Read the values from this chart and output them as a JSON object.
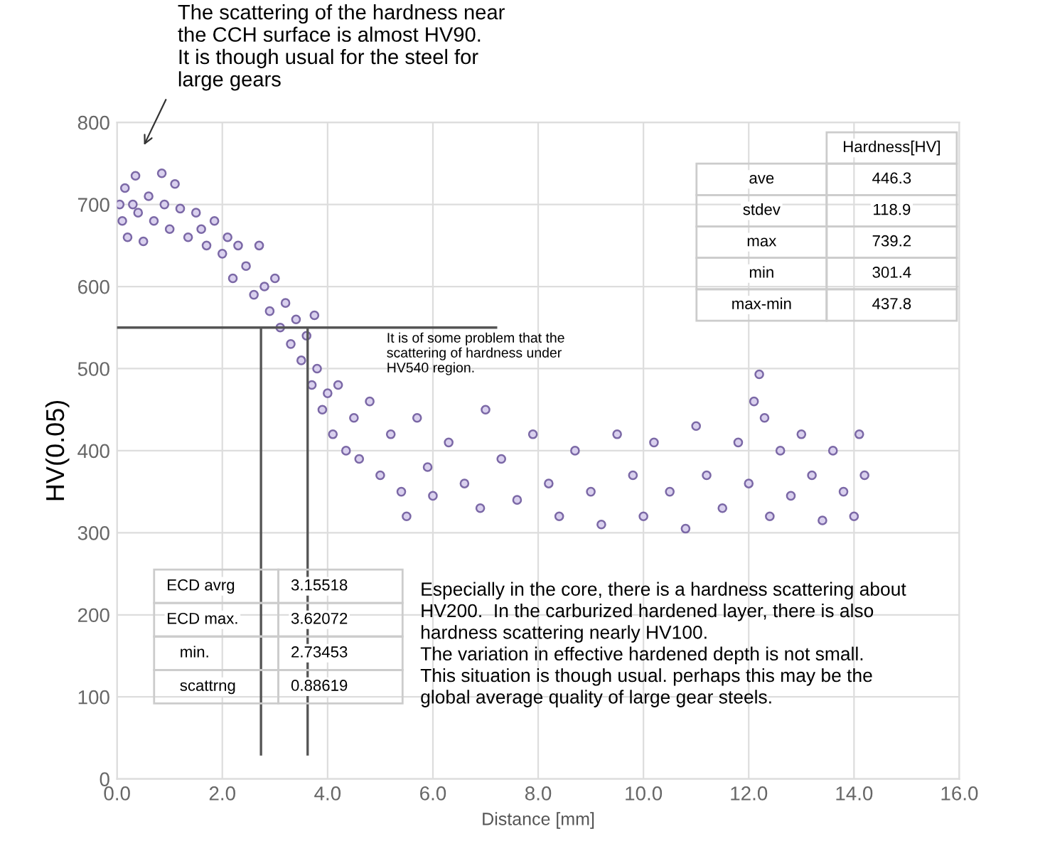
{
  "chart_data": {
    "type": "scatter",
    "xlabel": "Distance [mm]",
    "ylabel": "HV(0.05)",
    "xlim": [
      0,
      16
    ],
    "ylim": [
      0,
      800
    ],
    "xticks": [
      {
        "value": 0,
        "label": "0.0"
      },
      {
        "value": 2,
        "label": "2.0"
      },
      {
        "value": 4,
        "label": "4.0"
      },
      {
        "value": 6,
        "label": "6.0"
      },
      {
        "value": 8,
        "label": "8.0"
      },
      {
        "value": 10,
        "label": "10.0"
      },
      {
        "value": 12,
        "label": "12.0"
      },
      {
        "value": 14,
        "label": "14.0"
      },
      {
        "value": 16,
        "label": "16.0"
      }
    ],
    "yticks": [
      0,
      100,
      200,
      300,
      400,
      500,
      600,
      700,
      800
    ],
    "grid": true,
    "marker": "circle",
    "series": [
      {
        "color": "#7b68a6",
        "x": [
          0.05,
          0.1,
          0.15,
          0.2,
          0.3,
          0.35,
          0.4,
          0.5,
          0.6,
          0.7,
          0.85,
          0.9,
          1.0,
          1.1,
          1.2,
          1.35,
          1.5,
          1.6,
          1.7,
          1.85,
          2.0,
          2.1,
          2.2,
          2.3,
          2.45,
          2.6,
          2.7,
          2.8,
          2.9,
          3.0,
          3.1,
          3.2,
          3.3,
          3.4,
          3.5,
          3.6,
          3.7,
          3.75,
          3.8,
          3.9,
          4.0,
          4.1,
          4.2,
          4.35,
          4.5,
          4.6,
          4.8,
          5.0,
          5.2,
          5.4,
          5.5,
          5.7,
          5.9,
          6.0,
          6.3,
          6.6,
          6.9,
          7.0,
          7.3,
          7.6,
          7.9,
          8.2,
          8.4,
          8.7,
          9.0,
          9.2,
          9.5,
          9.8,
          10.0,
          10.2,
          10.5,
          10.8,
          11.0,
          11.2,
          11.5,
          11.8,
          12.0,
          12.1,
          12.2,
          12.3,
          12.4,
          12.6,
          12.8,
          13.0,
          13.2,
          13.4,
          13.6,
          13.8,
          14.0,
          14.1,
          14.2
        ],
        "values": [
          700,
          680,
          720,
          660,
          700,
          735,
          690,
          655,
          710,
          680,
          738,
          700,
          670,
          725,
          695,
          660,
          690,
          670,
          650,
          680,
          640,
          660,
          610,
          650,
          625,
          590,
          650,
          600,
          570,
          610,
          550,
          580,
          530,
          560,
          510,
          540,
          480,
          565,
          500,
          450,
          470,
          420,
          480,
          400,
          440,
          390,
          460,
          370,
          420,
          350,
          320,
          440,
          380,
          345,
          410,
          360,
          330,
          450,
          390,
          340,
          420,
          360,
          320,
          400,
          350,
          310,
          420,
          370,
          320,
          410,
          350,
          305,
          430,
          370,
          330,
          410,
          360,
          460,
          493,
          440,
          320,
          400,
          345,
          420,
          370,
          315,
          400,
          350,
          320,
          420,
          370
        ]
      }
    ],
    "ref_lines": [
      {
        "axis": "y",
        "value": 550,
        "color": "#555555"
      },
      {
        "axis": "x",
        "value": 2.73453,
        "color": "#555555"
      },
      {
        "axis": "x",
        "value": 3.62072,
        "color": "#555555"
      }
    ],
    "annotations": [
      "The scattering of the hardness near\nthe CCH surface is almost HV90.\nIt is though usual for the steel for\nlarge gears",
      "It is of some problem that the\nscattering of hardness under\nHV540 region.",
      "Especially in the core, there is a hardness scattering about\nHV200.  In the carburized hardened layer, there is also\nhardness scattering nearly HV100.\nThe variation in effective hardened depth is not small.\nThis situation is though usual. perhaps this may be the\nglobal average quality of large gear steels.",
      "Hardness[HV]",
      "ave",
      "446.3",
      "stdev",
      "118.9",
      "max",
      "739.2",
      "min",
      "301.4",
      "max-min",
      "437.8",
      "ECD avrg",
      "3.15518",
      "ECD max.",
      "3.62072",
      "   min.",
      "2.73453",
      "   scattrng",
      "0.88619"
    ]
  }
}
